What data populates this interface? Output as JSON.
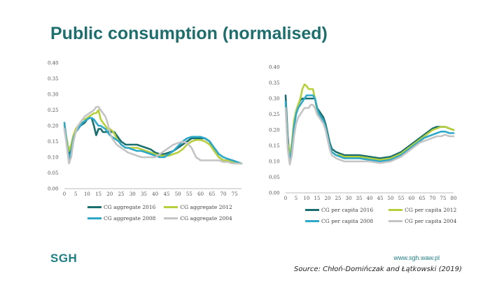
{
  "page": {
    "title": "Public consumption (normalised)",
    "logo": "SGH",
    "url": "www.sgh.waw.pl",
    "source": "Source: Chłoń-Domińczak and Łątkowski (2019)"
  },
  "chart_data": [
    {
      "type": "line",
      "title": "",
      "xlabel": "",
      "ylabel": "",
      "xlim": [
        0,
        78
      ],
      "ylim": [
        0,
        0.4
      ],
      "xticks": [
        0,
        5,
        10,
        15,
        20,
        25,
        30,
        35,
        40,
        45,
        50,
        55,
        60,
        65,
        70,
        75
      ],
      "yticks": [
        "0.00",
        "0.05",
        "0.10",
        "0.15",
        "0.20",
        "0.25",
        "0.30",
        "0.35",
        "0.40"
      ],
      "grid": false,
      "legend_position": "bottom",
      "series": [
        {
          "name": "CG aggregate 2016",
          "color": "#1a6e6e",
          "x": [
            0,
            1,
            2,
            3,
            4,
            5,
            6,
            7,
            8,
            9,
            10,
            11,
            12,
            13,
            14,
            15,
            16,
            17,
            18,
            19,
            20,
            21,
            22,
            23,
            24,
            25,
            26,
            27,
            28,
            30,
            32,
            34,
            36,
            38,
            40,
            42,
            44,
            46,
            48,
            50,
            52,
            54,
            56,
            58,
            60,
            62,
            64,
            66,
            68,
            70,
            72,
            74,
            76,
            78
          ],
          "y": [
            0.19,
            0.15,
            0.11,
            0.14,
            0.17,
            0.18,
            0.19,
            0.2,
            0.205,
            0.21,
            0.22,
            0.225,
            0.225,
            0.2,
            0.17,
            0.19,
            0.19,
            0.18,
            0.18,
            0.18,
            0.185,
            0.18,
            0.18,
            0.17,
            0.16,
            0.15,
            0.145,
            0.14,
            0.14,
            0.14,
            0.14,
            0.135,
            0.13,
            0.125,
            0.115,
            0.11,
            0.11,
            0.115,
            0.12,
            0.13,
            0.14,
            0.15,
            0.16,
            0.16,
            0.16,
            0.16,
            0.15,
            0.12,
            0.1,
            0.09,
            0.09,
            0.09,
            0.085,
            0.08
          ]
        },
        {
          "name": "CG aggregate 2012",
          "color": "#b6cf3a",
          "x": [
            0,
            1,
            2,
            3,
            4,
            5,
            6,
            7,
            8,
            9,
            10,
            11,
            12,
            13,
            14,
            15,
            16,
            17,
            18,
            19,
            20,
            21,
            22,
            23,
            24,
            25,
            26,
            27,
            28,
            30,
            32,
            34,
            36,
            38,
            40,
            42,
            44,
            46,
            48,
            50,
            52,
            54,
            56,
            58,
            60,
            62,
            64,
            66,
            68,
            70,
            72,
            74,
            76,
            78
          ],
          "y": [
            0.2,
            0.16,
            0.12,
            0.14,
            0.17,
            0.19,
            0.2,
            0.21,
            0.22,
            0.22,
            0.225,
            0.23,
            0.235,
            0.24,
            0.24,
            0.25,
            0.22,
            0.21,
            0.2,
            0.19,
            0.19,
            0.185,
            0.175,
            0.16,
            0.15,
            0.14,
            0.135,
            0.13,
            0.13,
            0.13,
            0.13,
            0.125,
            0.12,
            0.115,
            0.11,
            0.105,
            0.105,
            0.105,
            0.11,
            0.115,
            0.125,
            0.14,
            0.15,
            0.155,
            0.155,
            0.15,
            0.14,
            0.12,
            0.1,
            0.09,
            0.09,
            0.085,
            0.08,
            0.08
          ]
        },
        {
          "name": "CG aggregate 2008",
          "color": "#2ea8c9",
          "x": [
            0,
            1,
            2,
            3,
            4,
            5,
            6,
            7,
            8,
            9,
            10,
            11,
            12,
            13,
            14,
            15,
            16,
            17,
            18,
            19,
            20,
            21,
            22,
            23,
            24,
            25,
            26,
            27,
            28,
            30,
            32,
            34,
            36,
            38,
            40,
            42,
            44,
            46,
            48,
            50,
            52,
            54,
            56,
            58,
            60,
            62,
            64,
            66,
            68,
            70,
            72,
            74,
            76,
            78
          ],
          "y": [
            0.21,
            0.15,
            0.09,
            0.12,
            0.16,
            0.18,
            0.19,
            0.2,
            0.21,
            0.215,
            0.22,
            0.225,
            0.225,
            0.22,
            0.21,
            0.2,
            0.2,
            0.195,
            0.19,
            0.18,
            0.17,
            0.165,
            0.16,
            0.155,
            0.15,
            0.14,
            0.135,
            0.13,
            0.13,
            0.125,
            0.12,
            0.12,
            0.115,
            0.11,
            0.105,
            0.1,
            0.1,
            0.11,
            0.12,
            0.135,
            0.15,
            0.16,
            0.165,
            0.165,
            0.165,
            0.16,
            0.15,
            0.13,
            0.11,
            0.1,
            0.095,
            0.09,
            0.085,
            0.08
          ]
        },
        {
          "name": "CG aggregate 2004",
          "color": "#c4c4c4",
          "x": [
            0,
            1,
            2,
            3,
            4,
            5,
            6,
            7,
            8,
            9,
            10,
            11,
            12,
            13,
            14,
            15,
            16,
            17,
            18,
            19,
            20,
            21,
            22,
            23,
            24,
            25,
            26,
            27,
            28,
            30,
            32,
            34,
            36,
            38,
            40,
            42,
            44,
            46,
            48,
            50,
            52,
            54,
            56,
            58,
            60,
            62,
            64,
            66,
            68,
            70,
            72,
            74,
            76,
            78
          ],
          "y": [
            0.19,
            0.14,
            0.08,
            0.1,
            0.15,
            0.18,
            0.2,
            0.21,
            0.22,
            0.23,
            0.235,
            0.24,
            0.245,
            0.25,
            0.26,
            0.26,
            0.25,
            0.24,
            0.23,
            0.21,
            0.18,
            0.16,
            0.15,
            0.14,
            0.135,
            0.13,
            0.125,
            0.12,
            0.115,
            0.11,
            0.105,
            0.1,
            0.1,
            0.1,
            0.1,
            0.11,
            0.12,
            0.13,
            0.14,
            0.145,
            0.15,
            0.145,
            0.13,
            0.1,
            0.09,
            0.09,
            0.09,
            0.09,
            0.09,
            0.085,
            0.085,
            0.08,
            0.08,
            0.08
          ]
        }
      ]
    },
    {
      "type": "line",
      "title": "",
      "xlabel": "",
      "ylabel": "",
      "xlim": [
        0,
        80
      ],
      "ylim": [
        0,
        0.4
      ],
      "xticks": [
        0,
        5,
        10,
        15,
        20,
        25,
        30,
        35,
        40,
        45,
        50,
        55,
        60,
        65,
        70,
        75,
        80
      ],
      "yticks": [
        "0.00",
        "0.05",
        "0.10",
        "0.15",
        "0.20",
        "0.25",
        "0.30",
        "0.35",
        "0.40"
      ],
      "grid": false,
      "legend_position": "bottom",
      "series": [
        {
          "name": "CG per capita 2016",
          "color": "#1a6e6e",
          "x": [
            0,
            1,
            2,
            3,
            4,
            5,
            6,
            7,
            8,
            9,
            10,
            11,
            12,
            13,
            14,
            15,
            16,
            17,
            18,
            19,
            20,
            21,
            22,
            24,
            26,
            28,
            30,
            35,
            40,
            45,
            50,
            55,
            60,
            62,
            64,
            66,
            68,
            70,
            72,
            74,
            76,
            78,
            80
          ],
          "y": [
            0.31,
            0.18,
            0.1,
            0.15,
            0.22,
            0.26,
            0.28,
            0.295,
            0.3,
            0.3,
            0.3,
            0.3,
            0.3,
            0.3,
            0.3,
            0.27,
            0.26,
            0.25,
            0.24,
            0.22,
            0.19,
            0.16,
            0.14,
            0.13,
            0.125,
            0.12,
            0.12,
            0.12,
            0.115,
            0.11,
            0.115,
            0.13,
            0.155,
            0.165,
            0.175,
            0.185,
            0.195,
            0.205,
            0.21,
            0.21,
            0.21,
            0.205,
            0.2
          ]
        },
        {
          "name": "CG per capita 2012",
          "color": "#b6cf3a",
          "x": [
            0,
            1,
            2,
            3,
            4,
            5,
            6,
            7,
            8,
            9,
            10,
            11,
            12,
            13,
            14,
            15,
            16,
            17,
            18,
            19,
            20,
            21,
            22,
            24,
            26,
            28,
            30,
            35,
            40,
            45,
            50,
            55,
            60,
            62,
            64,
            66,
            68,
            70,
            72,
            74,
            76,
            78,
            80
          ],
          "y": [
            0.28,
            0.16,
            0.12,
            0.16,
            0.23,
            0.26,
            0.28,
            0.3,
            0.33,
            0.345,
            0.34,
            0.33,
            0.33,
            0.33,
            0.3,
            0.26,
            0.25,
            0.24,
            0.23,
            0.21,
            0.18,
            0.15,
            0.13,
            0.12,
            0.12,
            0.115,
            0.115,
            0.115,
            0.11,
            0.105,
            0.11,
            0.125,
            0.15,
            0.16,
            0.17,
            0.18,
            0.19,
            0.2,
            0.205,
            0.21,
            0.21,
            0.205,
            0.2
          ]
        },
        {
          "name": "CG per capita 2008",
          "color": "#2ea8c9",
          "x": [
            0,
            1,
            2,
            3,
            4,
            5,
            6,
            7,
            8,
            9,
            10,
            11,
            12,
            13,
            14,
            15,
            16,
            17,
            18,
            19,
            20,
            21,
            22,
            24,
            26,
            28,
            30,
            35,
            40,
            45,
            50,
            55,
            60,
            62,
            64,
            66,
            68,
            70,
            72,
            74,
            76,
            78,
            80
          ],
          "y": [
            0.29,
            0.15,
            0.1,
            0.14,
            0.21,
            0.25,
            0.27,
            0.28,
            0.29,
            0.3,
            0.31,
            0.31,
            0.31,
            0.31,
            0.3,
            0.27,
            0.25,
            0.24,
            0.23,
            0.21,
            0.18,
            0.15,
            0.13,
            0.12,
            0.115,
            0.11,
            0.11,
            0.11,
            0.105,
            0.1,
            0.105,
            0.12,
            0.145,
            0.155,
            0.165,
            0.175,
            0.18,
            0.185,
            0.19,
            0.195,
            0.195,
            0.19,
            0.19
          ]
        },
        {
          "name": "CG per capita 2004",
          "color": "#c4c4c4",
          "x": [
            0,
            1,
            2,
            3,
            4,
            5,
            6,
            7,
            8,
            9,
            10,
            11,
            12,
            13,
            14,
            15,
            16,
            17,
            18,
            19,
            20,
            21,
            22,
            24,
            26,
            28,
            30,
            35,
            40,
            45,
            50,
            55,
            60,
            62,
            64,
            66,
            68,
            70,
            72,
            74,
            76,
            78,
            80
          ],
          "y": [
            0.27,
            0.14,
            0.09,
            0.12,
            0.18,
            0.22,
            0.24,
            0.25,
            0.26,
            0.27,
            0.27,
            0.27,
            0.28,
            0.28,
            0.27,
            0.25,
            0.24,
            0.23,
            0.22,
            0.2,
            0.17,
            0.14,
            0.12,
            0.11,
            0.105,
            0.1,
            0.1,
            0.1,
            0.1,
            0.095,
            0.1,
            0.115,
            0.14,
            0.15,
            0.16,
            0.165,
            0.17,
            0.175,
            0.18,
            0.18,
            0.185,
            0.18,
            0.18
          ]
        }
      ]
    }
  ]
}
